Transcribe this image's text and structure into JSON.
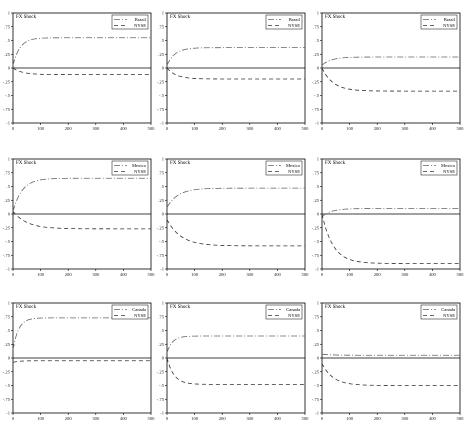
{
  "chart_data": [
    {
      "type": "line",
      "panel": "brazil-a",
      "title": "FX Shock",
      "xlim": [
        0,
        500
      ],
      "ylim": [
        -1,
        1
      ],
      "x_ticks": [
        "0",
        "100",
        "200",
        "300",
        "400",
        "500"
      ],
      "y_ticks": [
        "1",
        ".75",
        ".5",
        ".25",
        "0",
        "-.25",
        "-.5",
        "-.75",
        "-1"
      ],
      "legend_position": "top-right",
      "series": [
        {
          "name": "Brazil",
          "style": "dash-dot",
          "start": 0.05,
          "end": 0.55,
          "rate": 0.04
        },
        {
          "name": "NYSE",
          "style": "dashed",
          "start": 0.0,
          "end": -0.12,
          "rate": 0.03
        }
      ]
    },
    {
      "type": "line",
      "panel": "brazil-b",
      "title": "FX Shock",
      "xlim": [
        0,
        500
      ],
      "ylim": [
        -1,
        1
      ],
      "x_ticks": [
        "0",
        "100",
        "200",
        "300",
        "400",
        "500"
      ],
      "y_ticks": [
        "1",
        ".75",
        ".5",
        ".25",
        "0",
        "-.25",
        "-.5",
        "-.75",
        "-1"
      ],
      "legend_position": "top-right",
      "series": [
        {
          "name": "Brazil",
          "style": "dash-dot",
          "start": 0.05,
          "end": 0.37,
          "rate": 0.035
        },
        {
          "name": "NYSE",
          "style": "dashed",
          "start": 0.0,
          "end": -0.2,
          "rate": 0.03
        }
      ]
    },
    {
      "type": "line",
      "panel": "brazil-c",
      "title": "FX Shock",
      "xlim": [
        0,
        500
      ],
      "ylim": [
        -1,
        1
      ],
      "x_ticks": [
        "0",
        "100",
        "200",
        "300",
        "400",
        "500"
      ],
      "y_ticks": [
        "1",
        ".75",
        ".5",
        ".25",
        "0",
        "-.25",
        "-.5",
        "-.75",
        "-1"
      ],
      "legend_position": "top-right",
      "series": [
        {
          "name": "Brazil",
          "style": "dash-dot",
          "start": 0.05,
          "end": 0.2,
          "rate": 0.03
        },
        {
          "name": "NYSE",
          "style": "dashed",
          "start": 0.0,
          "end": -0.42,
          "rate": 0.025
        }
      ]
    },
    {
      "type": "line",
      "panel": "mexico-a",
      "title": "FX Shock",
      "xlim": [
        0,
        500
      ],
      "ylim": [
        -1,
        1
      ],
      "x_ticks": [
        "0",
        "100",
        "200",
        "300",
        "400",
        "500"
      ],
      "y_ticks": [
        "1",
        ".75",
        ".5",
        ".25",
        "0",
        "-.25",
        "-.5",
        "-.75",
        "-1"
      ],
      "legend_position": "top-right",
      "series": [
        {
          "name": "Mexico",
          "style": "dash-dot",
          "start": 0.05,
          "end": 0.65,
          "rate": 0.03
        },
        {
          "name": "NYSE",
          "style": "dashed",
          "start": 0.05,
          "end": -0.27,
          "rate": 0.02
        }
      ]
    },
    {
      "type": "line",
      "panel": "mexico-b",
      "title": "FX Shock",
      "xlim": [
        0,
        500
      ],
      "ylim": [
        -1,
        1
      ],
      "x_ticks": [
        "0",
        "100",
        "200",
        "300",
        "400",
        "500"
      ],
      "y_ticks": [
        "1",
        ".75",
        ".5",
        ".25",
        "0",
        "-.25",
        "-.5",
        "-.75",
        "-1"
      ],
      "legend_position": "top-right",
      "series": [
        {
          "name": "Mexico",
          "style": "dash-dot",
          "start": 0.12,
          "end": 0.47,
          "rate": 0.025
        },
        {
          "name": "NYSE",
          "style": "dashed",
          "start": -0.1,
          "end": -0.58,
          "rate": 0.02
        }
      ]
    },
    {
      "type": "line",
      "panel": "mexico-c",
      "title": "FX Shock",
      "xlim": [
        0,
        500
      ],
      "ylim": [
        -1,
        1
      ],
      "x_ticks": [
        "0",
        "100",
        "200",
        "300",
        "400",
        "500"
      ],
      "y_ticks": [
        "1",
        ".75",
        ".5",
        ".25",
        "0",
        "-.25",
        "-.5",
        "-.75",
        "-1"
      ],
      "legend_position": "top-right",
      "series": [
        {
          "name": "Mexico",
          "style": "dash-dot",
          "start": -0.05,
          "end": 0.1,
          "rate": 0.03
        },
        {
          "name": "NYSE",
          "style": "dashed",
          "start": 0.0,
          "end": -0.9,
          "rate": 0.025
        }
      ]
    },
    {
      "type": "line",
      "panel": "canada-a",
      "title": "FX Shock",
      "xlim": [
        0,
        500
      ],
      "ylim": [
        -1,
        1
      ],
      "x_ticks": [
        "0",
        "100",
        "200",
        "300",
        "400",
        "500"
      ],
      "y_ticks": [
        "1",
        ".75",
        ".5",
        ".25",
        "0",
        "-.25",
        "-.5",
        "-.75",
        "-1"
      ],
      "legend_position": "top-right",
      "series": [
        {
          "name": "Canada",
          "style": "dash-dot",
          "start": 0.15,
          "end": 0.73,
          "rate": 0.05
        },
        {
          "name": "NYSE",
          "style": "dashed",
          "start": -0.08,
          "end": -0.05,
          "rate": 0.05
        }
      ]
    },
    {
      "type": "line",
      "panel": "canada-b",
      "title": "FX Shock",
      "xlim": [
        0,
        500
      ],
      "ylim": [
        -1,
        1
      ],
      "x_ticks": [
        "0",
        "100",
        "200",
        "300",
        "400",
        "500"
      ],
      "y_ticks": [
        "1",
        ".75",
        ".5",
        ".25",
        "0",
        "-.25",
        "-.5",
        "-.75",
        "-1"
      ],
      "legend_position": "top-right",
      "series": [
        {
          "name": "Canada",
          "style": "dash-dot",
          "start": 0.1,
          "end": 0.4,
          "rate": 0.05
        },
        {
          "name": "NYSE",
          "style": "dashed",
          "start": 0.0,
          "end": -0.48,
          "rate": 0.04
        }
      ]
    },
    {
      "type": "line",
      "panel": "canada-c",
      "title": "FX Shock",
      "xlim": [
        0,
        500
      ],
      "ylim": [
        -1,
        1
      ],
      "x_ticks": [
        "0",
        "100",
        "200",
        "300",
        "400",
        "500"
      ],
      "y_ticks": [
        "1",
        ".75",
        ".5",
        ".25",
        "0",
        "-.25",
        "-.5",
        "-.75",
        "-1"
      ],
      "legend_position": "top-right",
      "series": [
        {
          "name": "Canada",
          "style": "dash-dot",
          "start": 0.07,
          "end": 0.05,
          "rate": 0.03
        },
        {
          "name": "NYSE",
          "style": "dashed",
          "start": -0.1,
          "end": -0.5,
          "rate": 0.025
        }
      ]
    }
  ]
}
